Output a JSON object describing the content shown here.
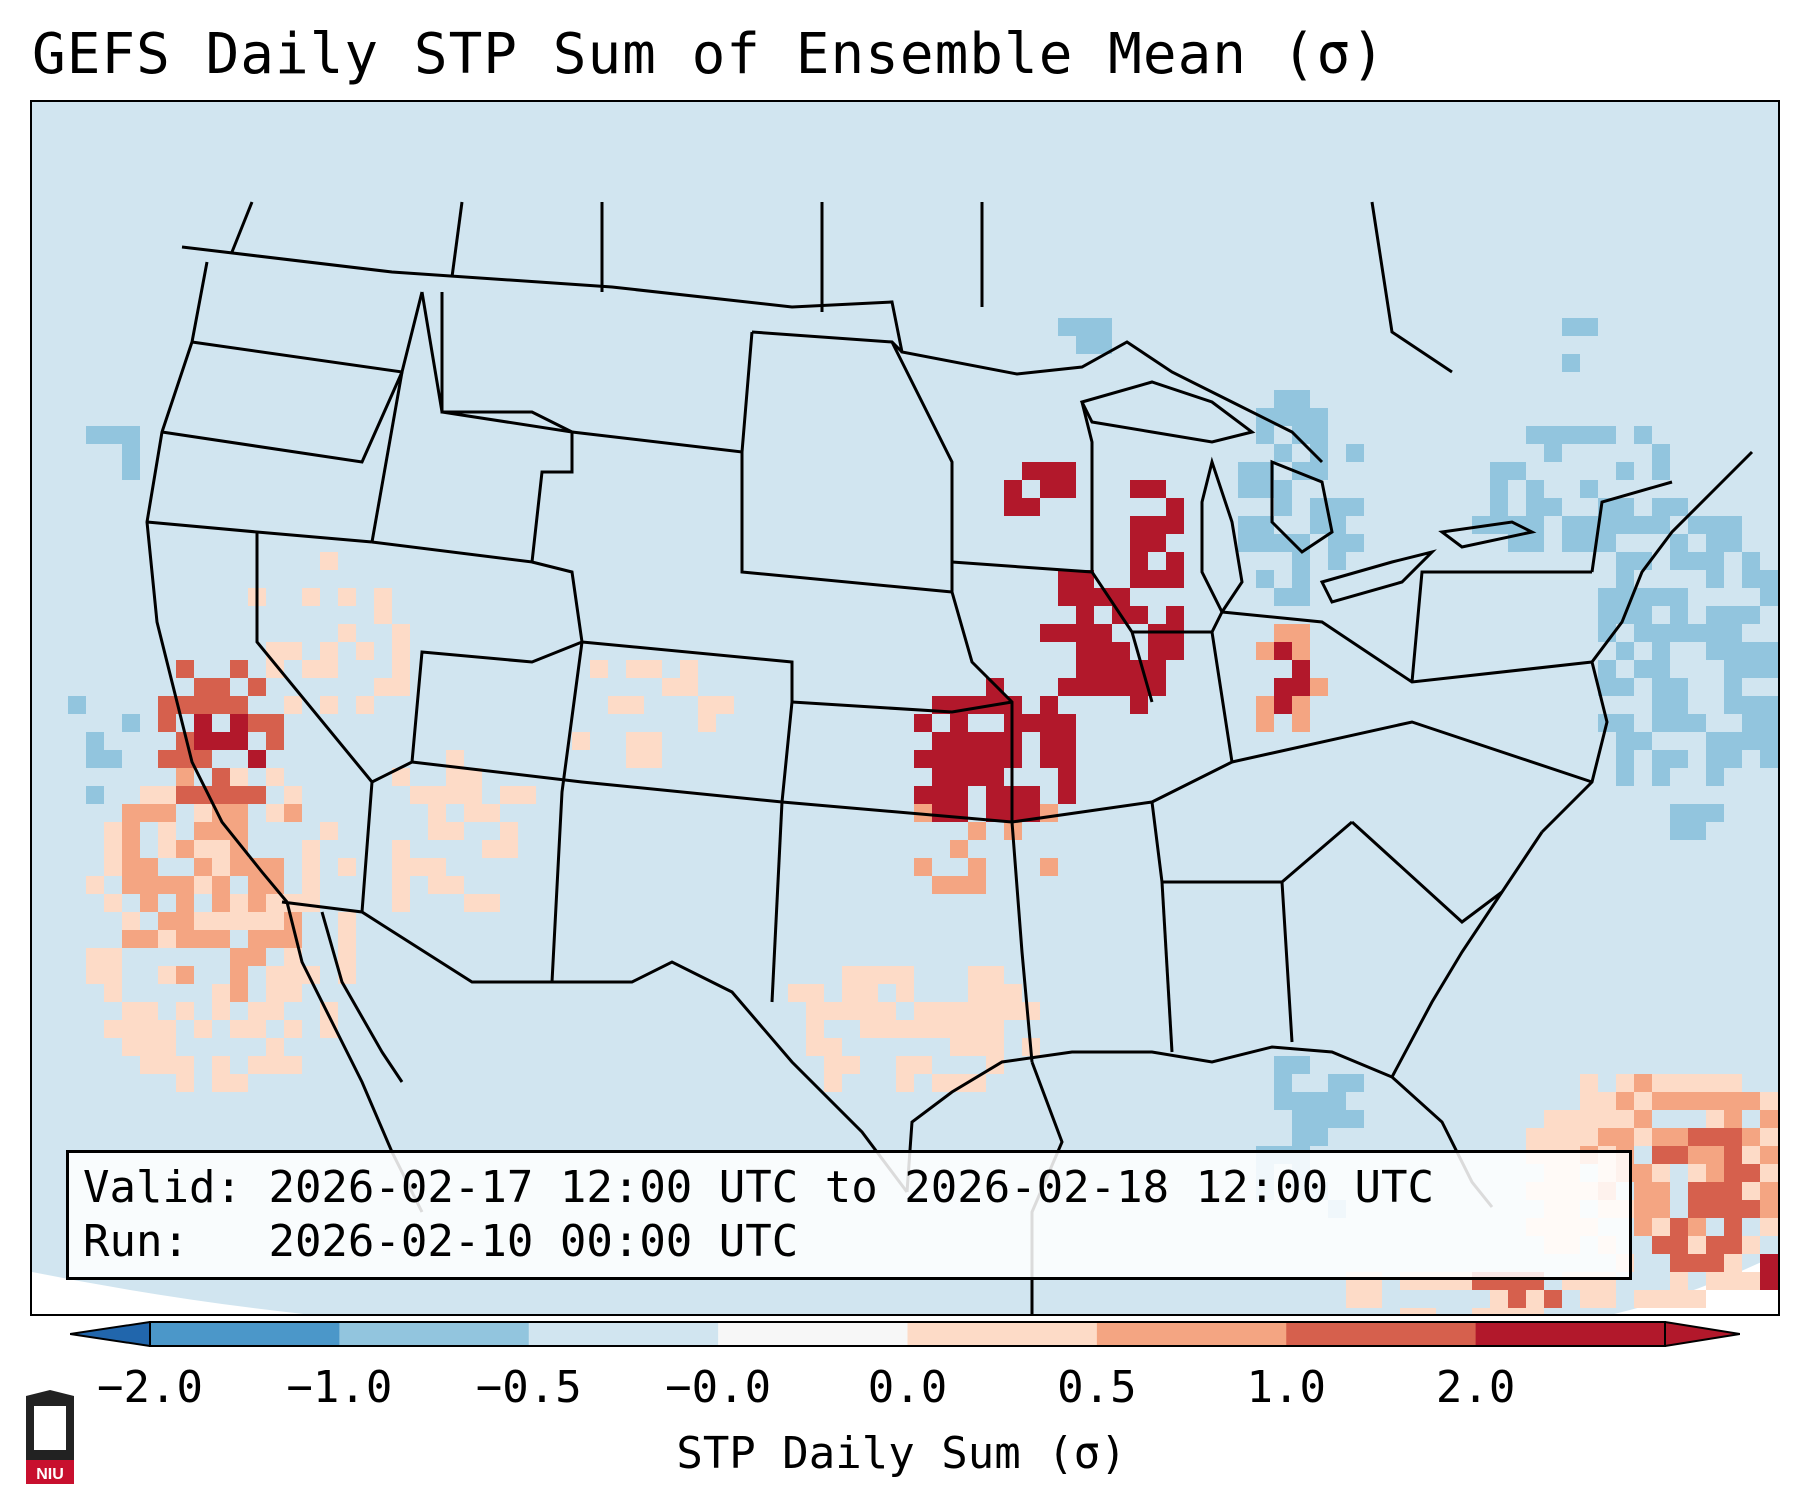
{
  "title": "GEFS Daily STP Sum of Ensemble Mean (σ)",
  "info": {
    "valid_label": "Valid:",
    "valid_text": "2026-02-17 12:00 UTC to 2026-02-18 12:00 UTC",
    "run_label": "Run:",
    "run_text": "2026-02-10 00:00 UTC"
  },
  "colorbar": {
    "label": "STP Daily Sum (σ)",
    "ticks": [
      "−2.0",
      "−1.0",
      "−0.5",
      "−0.0",
      "0.0",
      "0.5",
      "1.0",
      "2.0"
    ],
    "colors": [
      "#4b97c9",
      "#92c5de",
      "#d1e5f0",
      "#f7f7f7",
      "#fddbc7",
      "#f4a582",
      "#d6604d",
      "#b2182b"
    ]
  },
  "logo": {
    "text": "NIU",
    "color": "#c8102e"
  },
  "map_colors": {
    "ocean": "#d1e5f0",
    "land_neutral": "#d1e5f0",
    "light_blue": "#92c5de",
    "light_red": "#fddbc7",
    "mid_red": "#f4a582",
    "red": "#d6604d",
    "dark_red": "#b2182b"
  }
}
